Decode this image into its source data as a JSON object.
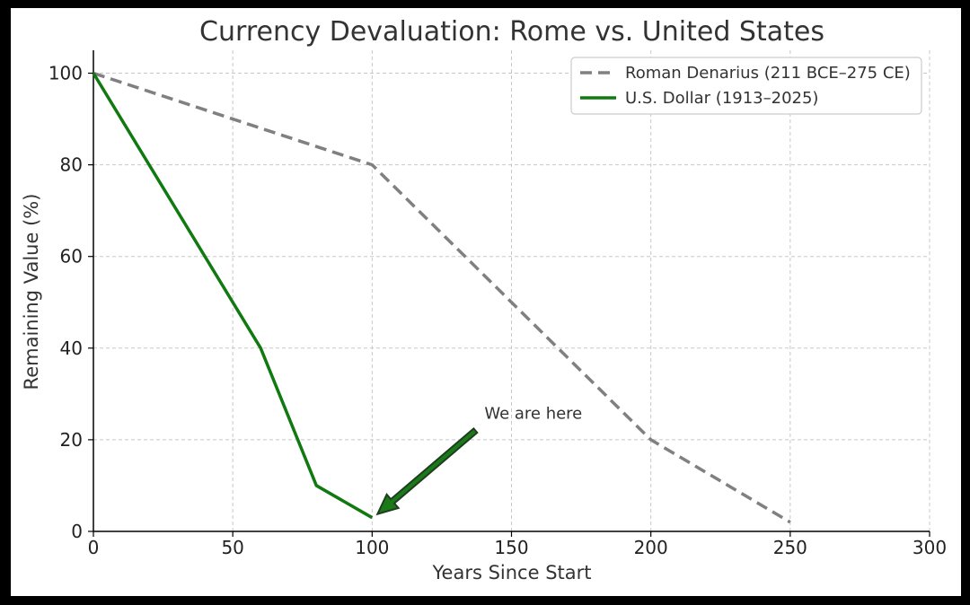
{
  "chart_data": {
    "type": "line",
    "title": "Currency Devaluation: Rome vs. United States",
    "xlabel": "Years Since Start",
    "ylabel": "Remaining Value (%)",
    "xlim": [
      0,
      300
    ],
    "ylim": [
      0,
      105
    ],
    "xticks": [
      0,
      50,
      100,
      150,
      200,
      250,
      300
    ],
    "yticks": [
      0,
      20,
      40,
      60,
      80,
      100
    ],
    "grid": true,
    "legend_position": "top-right",
    "series": [
      {
        "name": "Roman Denarius (211 BCE–275 CE)",
        "color": "#808080",
        "style": "dashed",
        "x": [
          0,
          100,
          200,
          250
        ],
        "y": [
          100,
          80,
          20,
          2
        ]
      },
      {
        "name": "U.S. Dollar (1913–2025)",
        "color": "#107a10",
        "style": "solid",
        "x": [
          0,
          60,
          80,
          100
        ],
        "y": [
          100,
          40,
          10,
          3
        ]
      }
    ],
    "annotations": [
      {
        "text": "We are here",
        "x": 100,
        "y": 3,
        "arrow": true,
        "arrow_color": "#1f3d1f"
      }
    ]
  }
}
